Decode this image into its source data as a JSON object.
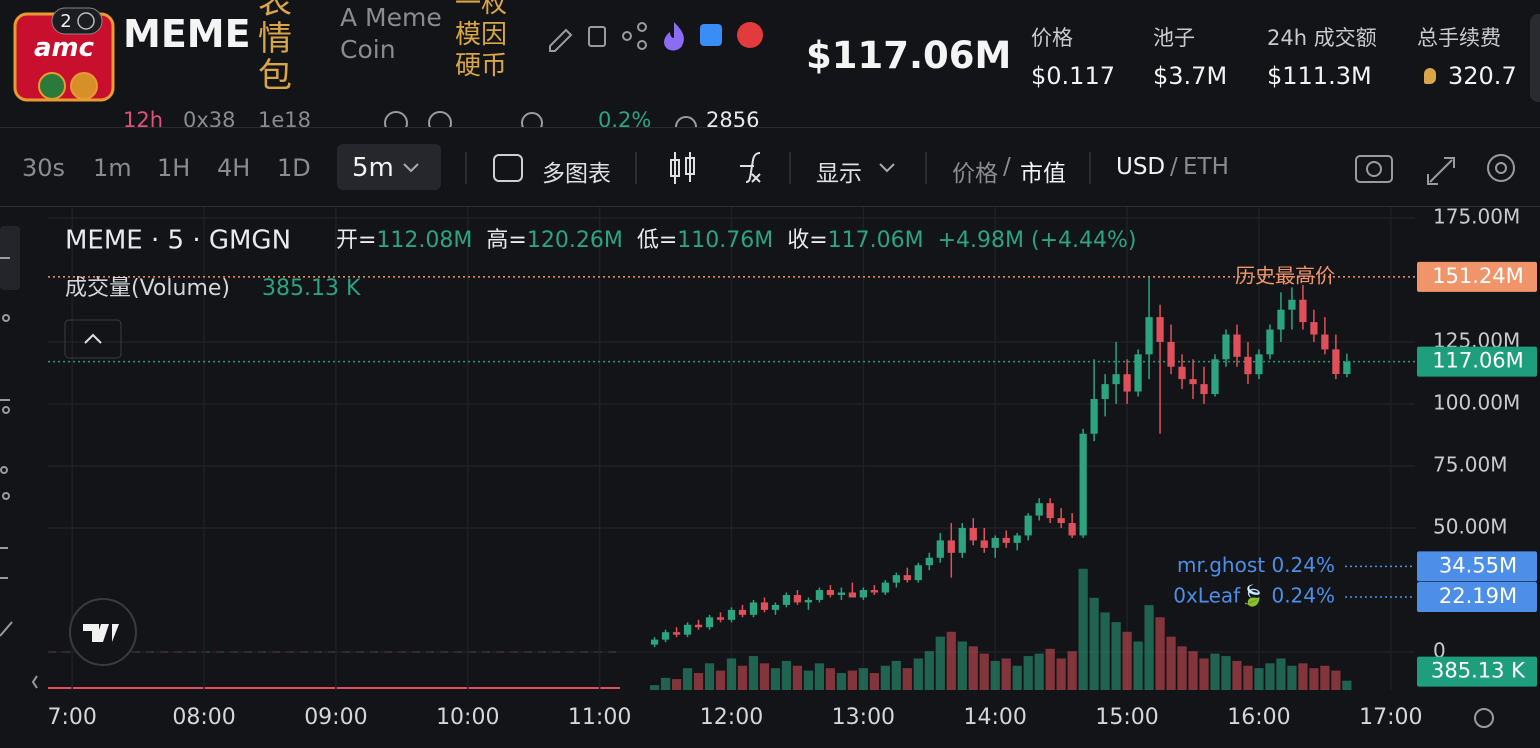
{
  "header": {
    "logo_text": "amc",
    "badge": "2",
    "symbol": "MEME",
    "tag": "表情包",
    "name": "A Meme Coin",
    "name_cn": "一枚模因硬币",
    "market_cap": "$117.06M",
    "stats": [
      {
        "label": "价格",
        "value": "$0.117"
      },
      {
        "label": "池子",
        "value": "$3.7M"
      },
      {
        "label": "24h 成交额",
        "value": "$111.3M"
      },
      {
        "label": "总手续费",
        "value": "320.7"
      }
    ],
    "row2": [
      "12h",
      "0x38",
      "1e18",
      "0.2%",
      "2856"
    ]
  },
  "toolbar": {
    "timeframes": [
      "30s",
      "1m",
      "1H",
      "4H",
      "1D"
    ],
    "selected": "5m",
    "multi_chart": "多图表",
    "display": "显示",
    "price": "价格",
    "sep": "/",
    "mcap": "市值",
    "usd": "USD",
    "eth": "ETH"
  },
  "chart_data": {
    "type": "candlestick",
    "title": "MEME · 5 · GMGN",
    "legend": {
      "open_label": "开=",
      "open": "112.08M",
      "high_label": "高=",
      "high": "120.26M",
      "low_label": "低=",
      "low": "110.76M",
      "close_label": "收=",
      "close": "117.06M",
      "change": "+4.98M (+4.44%)",
      "volume_label": "成交量(Volume)",
      "volume": "385.13 K"
    },
    "x": [
      685,
      690,
      695,
      700,
      705,
      710,
      715,
      720,
      725,
      730,
      735,
      740,
      745,
      750,
      755,
      760,
      765,
      770,
      775,
      780,
      785,
      790,
      795,
      800,
      805,
      810,
      815,
      820,
      825,
      830,
      835,
      840,
      845,
      850,
      855,
      860,
      865,
      870,
      875,
      880,
      885,
      890,
      895,
      900,
      905,
      910,
      915,
      920,
      925,
      930,
      935,
      940,
      945,
      950,
      955,
      960,
      965,
      970,
      975,
      980,
      985,
      990,
      995,
      1000
    ],
    "open": [
      3,
      5,
      8,
      7,
      11,
      10,
      14,
      13,
      17,
      15,
      20,
      17,
      19,
      23,
      20,
      21,
      25,
      23,
      24,
      22,
      25,
      24,
      28,
      31,
      29,
      35,
      38,
      45,
      40,
      50,
      45,
      42,
      46,
      44,
      47,
      55,
      60,
      54,
      52,
      47,
      88,
      102,
      108,
      112,
      105,
      120,
      135,
      125,
      115,
      110,
      108,
      104,
      118,
      128,
      119,
      112,
      120,
      130,
      138,
      142,
      133,
      128,
      122,
      112.08
    ],
    "high": [
      6,
      9,
      10,
      12,
      13,
      15,
      16,
      18,
      19,
      21,
      22,
      20,
      24,
      25,
      22,
      26,
      27,
      26,
      28,
      26,
      27,
      29,
      32,
      34,
      36,
      40,
      48,
      52,
      52,
      54,
      50,
      47,
      49,
      48,
      56,
      62,
      62,
      58,
      56,
      90,
      118,
      112,
      125,
      118,
      122,
      151.24,
      140,
      132,
      120,
      118,
      115,
      120,
      130,
      132,
      125,
      122,
      132,
      145,
      147,
      148,
      138,
      135,
      128,
      120.26
    ],
    "low": [
      2,
      4,
      6,
      6,
      9,
      9,
      12,
      12,
      14,
      14,
      16,
      15,
      18,
      19,
      17,
      20,
      22,
      21,
      22,
      21,
      23,
      23,
      26,
      28,
      28,
      33,
      36,
      30,
      38,
      43,
      40,
      38,
      42,
      41,
      45,
      53,
      52,
      50,
      46,
      46,
      85,
      95,
      100,
      100,
      103,
      110,
      88,
      112,
      106,
      102,
      100,
      103,
      115,
      115,
      108,
      110,
      118,
      125,
      130,
      130,
      125,
      120,
      110,
      110.76
    ],
    "close": [
      5,
      8,
      7,
      11,
      10,
      14,
      13,
      17,
      15,
      20,
      17,
      19,
      23,
      20,
      21,
      25,
      23,
      24,
      22,
      25,
      24,
      28,
      31,
      29,
      35,
      38,
      45,
      40,
      50,
      45,
      42,
      46,
      44,
      47,
      55,
      60,
      54,
      52,
      47,
      88,
      102,
      108,
      112,
      105,
      120,
      135,
      125,
      115,
      110,
      108,
      104,
      118,
      128,
      119,
      112,
      120,
      130,
      138,
      142,
      133,
      128,
      122,
      112.08,
      117.06
    ],
    "volume": [
      200,
      500,
      450,
      900,
      700,
      1100,
      800,
      1300,
      1000,
      1400,
      1100,
      900,
      1200,
      1000,
      800,
      1100,
      900,
      700,
      800,
      900,
      700,
      1000,
      1200,
      900,
      1300,
      1600,
      2200,
      2400,
      2000,
      1800,
      1500,
      1200,
      1300,
      1000,
      1400,
      1500,
      1700,
      1300,
      1600,
      5000,
      3800,
      3200,
      2800,
      2400,
      2000,
      3500,
      3000,
      2200,
      1800,
      1600,
      1300,
      1500,
      1400,
      1200,
      1000,
      900,
      1100,
      1300,
      1000,
      1100,
      900,
      1000,
      800,
      385.13
    ],
    "up_color": "#2ca47f",
    "down_color": "#e0505b",
    "xlim": [
      409,
      1031
    ],
    "xticks": [
      {
        "value": 420,
        "label": "7:00"
      },
      {
        "value": 480,
        "label": "08:00"
      },
      {
        "value": 540,
        "label": "09:00"
      },
      {
        "value": 600,
        "label": "10:00"
      },
      {
        "value": 660,
        "label": "11:00"
      },
      {
        "value": 720,
        "label": "12:00"
      },
      {
        "value": 780,
        "label": "13:00"
      },
      {
        "value": 840,
        "label": "14:00"
      },
      {
        "value": 900,
        "label": "15:00"
      },
      {
        "value": 960,
        "label": "16:00"
      },
      {
        "value": 1020,
        "label": "17:00"
      }
    ],
    "ylim": [
      -15.3,
      180.2
    ],
    "yticks": [
      {
        "value": 175,
        "label": "175.00M"
      },
      {
        "value": 125,
        "label": "125.00M"
      },
      {
        "value": 100,
        "label": "100.00M"
      },
      {
        "value": 75,
        "label": "75.00M"
      },
      {
        "value": 50,
        "label": "50.00M"
      },
      0
    ],
    "y2lim": [
      0,
      20000
    ],
    "grid": true,
    "price_lines": [
      {
        "name": "历史最高价",
        "value": 151.24,
        "label": "151.24M",
        "color": "#f0956a"
      },
      {
        "value": 117.06,
        "label": "117.06M",
        "color": "#1f9e7e"
      },
      {
        "name": "mr.ghost 0.24%",
        "value": 34.55,
        "label": "34.55M",
        "color": "#4d8fe8"
      },
      {
        "name": "0xLeaf🍃 0.24%",
        "value": 22.19,
        "label": "22.19M",
        "color": "#4d8fe8"
      }
    ],
    "volume_tag": {
      "value": 385.13,
      "label": "385.13 K",
      "color": "#1f9e7e"
    }
  }
}
